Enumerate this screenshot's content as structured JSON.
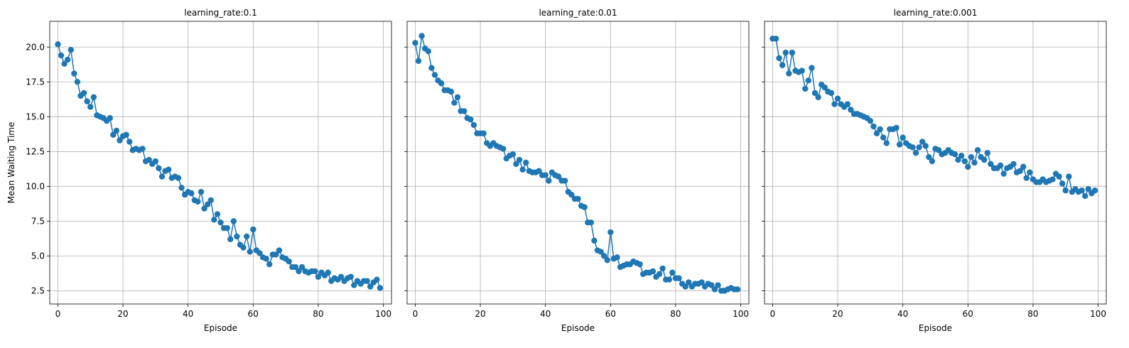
{
  "figure": {
    "ylabel": "Mean Waiting Time",
    "series_color": "#1f77b4"
  },
  "chart_data": [
    {
      "type": "line",
      "title": "learning_rate:0.1",
      "xlabel": "Episode",
      "ylabel": "Mean Waiting Time",
      "grid": true,
      "marker": "circle",
      "xlim": [
        -2.5,
        102.5
      ],
      "ylim": [
        1.55,
        21.85
      ],
      "xticks": [
        0,
        20,
        40,
        60,
        80,
        100
      ],
      "yticks": [
        2.5,
        5.0,
        7.5,
        10.0,
        12.5,
        15.0,
        17.5,
        20.0
      ],
      "series": [
        {
          "x": [
            0,
            1,
            2,
            3,
            4,
            5,
            6,
            7,
            8,
            9,
            10,
            11,
            12,
            13,
            14,
            15,
            16,
            17,
            18,
            19,
            20,
            21,
            22,
            23,
            24,
            25,
            26,
            27,
            28,
            29,
            30,
            31,
            32,
            33,
            34,
            35,
            36,
            37,
            38,
            39,
            40,
            41,
            42,
            43,
            44,
            45,
            46,
            47,
            48,
            49,
            50,
            51,
            52,
            53,
            54,
            55,
            56,
            57,
            58,
            59,
            60,
            61,
            62,
            63,
            64,
            65,
            66,
            67,
            68,
            69,
            70,
            71,
            72,
            73,
            74,
            75,
            76,
            77,
            78,
            79,
            80,
            81,
            82,
            83,
            84,
            85,
            86,
            87,
            88,
            89,
            90,
            91,
            92,
            93,
            94,
            95,
            96,
            97,
            98,
            99
          ],
          "y": [
            20.2,
            19.4,
            18.8,
            19.1,
            19.8,
            18.1,
            17.5,
            16.5,
            16.7,
            16.1,
            15.7,
            16.4,
            15.1,
            15.0,
            14.9,
            14.7,
            14.9,
            13.7,
            14.0,
            13.3,
            13.6,
            13.7,
            13.2,
            12.6,
            12.7,
            12.6,
            12.7,
            11.8,
            11.9,
            11.6,
            11.8,
            11.3,
            10.7,
            11.1,
            11.2,
            10.6,
            10.7,
            10.6,
            9.9,
            9.4,
            9.6,
            9.5,
            9.0,
            8.9,
            9.6,
            8.4,
            8.7,
            9.0,
            7.6,
            8.0,
            7.4,
            7.0,
            7.0,
            6.2,
            7.5,
            6.4,
            5.8,
            5.6,
            6.4,
            5.3,
            6.9,
            5.4,
            5.2,
            4.9,
            4.8,
            4.4,
            5.1,
            5.1,
            5.4,
            4.9,
            4.8,
            4.6,
            4.2,
            4.2,
            3.9,
            4.2,
            3.9,
            3.8,
            3.9,
            3.9,
            3.5,
            3.8,
            3.6,
            3.8,
            3.2,
            3.4,
            3.3,
            3.5,
            3.2,
            3.4,
            3.5,
            2.9,
            3.2,
            3.0,
            3.2,
            3.2,
            2.8,
            3.1,
            3.3,
            2.7
          ]
        }
      ]
    },
    {
      "type": "line",
      "title": "learning_rate:0.01",
      "xlabel": "Episode",
      "ylabel": "",
      "grid": true,
      "marker": "circle",
      "xlim": [
        -2.5,
        102.5
      ],
      "ylim": [
        1.55,
        21.85
      ],
      "xticks": [
        0,
        20,
        40,
        60,
        80,
        100
      ],
      "yticks": [
        2.5,
        5.0,
        7.5,
        10.0,
        12.5,
        15.0,
        17.5,
        20.0
      ],
      "series": [
        {
          "x": [
            0,
            1,
            2,
            3,
            4,
            5,
            6,
            7,
            8,
            9,
            10,
            11,
            12,
            13,
            14,
            15,
            16,
            17,
            18,
            19,
            20,
            21,
            22,
            23,
            24,
            25,
            26,
            27,
            28,
            29,
            30,
            31,
            32,
            33,
            34,
            35,
            36,
            37,
            38,
            39,
            40,
            41,
            42,
            43,
            44,
            45,
            46,
            47,
            48,
            49,
            50,
            51,
            52,
            53,
            54,
            55,
            56,
            57,
            58,
            59,
            60,
            61,
            62,
            63,
            64,
            65,
            66,
            67,
            68,
            69,
            70,
            71,
            72,
            73,
            74,
            75,
            76,
            77,
            78,
            79,
            80,
            81,
            82,
            83,
            84,
            85,
            86,
            87,
            88,
            89,
            90,
            91,
            92,
            93,
            94,
            95,
            96,
            97,
            98,
            99
          ],
          "y": [
            20.3,
            19.0,
            20.8,
            19.9,
            19.7,
            18.5,
            18.0,
            17.6,
            17.4,
            16.9,
            16.9,
            16.8,
            16.0,
            16.4,
            15.4,
            15.4,
            14.9,
            14.8,
            14.4,
            13.8,
            13.8,
            13.8,
            13.1,
            12.9,
            13.1,
            12.9,
            12.8,
            12.7,
            12.0,
            12.2,
            12.3,
            11.6,
            11.9,
            11.2,
            11.7,
            11.1,
            11.0,
            11.0,
            11.1,
            10.8,
            10.8,
            10.4,
            11.0,
            10.8,
            10.7,
            10.4,
            10.4,
            9.6,
            9.4,
            9.1,
            9.1,
            8.6,
            8.5,
            7.4,
            7.4,
            6.1,
            5.4,
            5.3,
            5.0,
            4.7,
            6.7,
            4.8,
            4.9,
            4.2,
            4.3,
            4.4,
            4.4,
            4.6,
            4.5,
            4.4,
            3.7,
            3.8,
            3.8,
            3.9,
            3.5,
            3.7,
            4.1,
            3.3,
            3.3,
            3.8,
            3.4,
            3.4,
            3.0,
            2.8,
            3.1,
            2.8,
            3.0,
            3.0,
            3.1,
            2.8,
            3.0,
            2.9,
            2.6,
            2.9,
            2.5,
            2.5,
            2.6,
            2.7,
            2.6,
            2.6
          ]
        }
      ]
    },
    {
      "type": "line",
      "title": "learning_rate:0.001",
      "xlabel": "Episode",
      "ylabel": "",
      "grid": true,
      "marker": "circle",
      "xlim": [
        -2.5,
        102.5
      ],
      "ylim": [
        1.55,
        21.85
      ],
      "xticks": [
        0,
        20,
        40,
        60,
        80,
        100
      ],
      "yticks": [
        2.5,
        5.0,
        7.5,
        10.0,
        12.5,
        15.0,
        17.5,
        20.0
      ],
      "series": [
        {
          "x": [
            0,
            1,
            2,
            3,
            4,
            5,
            6,
            7,
            8,
            9,
            10,
            11,
            12,
            13,
            14,
            15,
            16,
            17,
            18,
            19,
            20,
            21,
            22,
            23,
            24,
            25,
            26,
            27,
            28,
            29,
            30,
            31,
            32,
            33,
            34,
            35,
            36,
            37,
            38,
            39,
            40,
            41,
            42,
            43,
            44,
            45,
            46,
            47,
            48,
            49,
            50,
            51,
            52,
            53,
            54,
            55,
            56,
            57,
            58,
            59,
            60,
            61,
            62,
            63,
            64,
            65,
            66,
            67,
            68,
            69,
            70,
            71,
            72,
            73,
            74,
            75,
            76,
            77,
            78,
            79,
            80,
            81,
            82,
            83,
            84,
            85,
            86,
            87,
            88,
            89,
            90,
            91,
            92,
            93,
            94,
            95,
            96,
            97,
            98,
            99
          ],
          "y": [
            20.6,
            20.6,
            19.2,
            18.7,
            19.6,
            18.1,
            19.6,
            18.3,
            18.2,
            18.3,
            17.0,
            17.6,
            18.5,
            16.7,
            16.4,
            17.3,
            17.1,
            16.8,
            16.7,
            15.9,
            16.3,
            15.9,
            15.7,
            15.9,
            15.5,
            15.2,
            15.2,
            15.1,
            15.0,
            14.9,
            14.7,
            14.3,
            13.8,
            14.1,
            13.5,
            13.1,
            14.1,
            14.1,
            14.2,
            13.0,
            13.5,
            13.1,
            12.9,
            12.8,
            12.4,
            12.8,
            13.2,
            12.9,
            12.1,
            11.8,
            12.7,
            12.6,
            12.3,
            12.4,
            12.6,
            12.4,
            12.3,
            11.9,
            12.2,
            11.8,
            11.4,
            12.1,
            11.7,
            12.6,
            12.1,
            11.9,
            12.4,
            11.6,
            11.3,
            11.3,
            11.5,
            10.9,
            11.3,
            11.4,
            11.6,
            11.0,
            11.1,
            11.4,
            10.6,
            11.0,
            10.5,
            10.3,
            10.3,
            10.5,
            10.3,
            10.4,
            10.5,
            10.9,
            10.7,
            10.2,
            9.7,
            10.7,
            9.6,
            9.8,
            9.6,
            9.7,
            9.3,
            9.8,
            9.5,
            9.7
          ]
        }
      ]
    }
  ]
}
